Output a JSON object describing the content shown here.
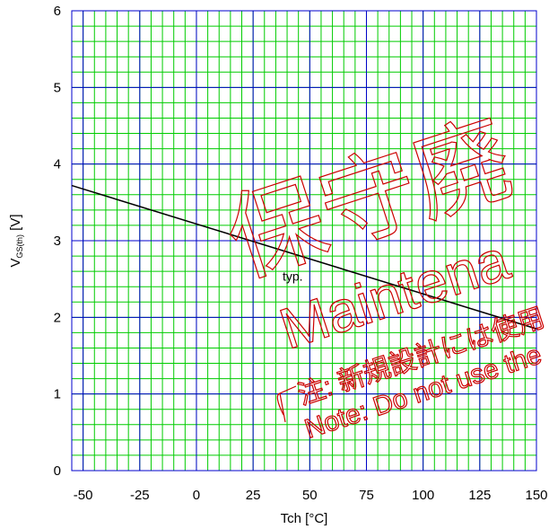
{
  "chart_data": {
    "type": "line",
    "title": "",
    "xlabel": "Tch [°C]",
    "ylabel": {
      "main": "V",
      "sub": "GS(th)",
      "unit": " [V]"
    },
    "xlim": [
      -55,
      150
    ],
    "ylim": [
      0,
      6
    ],
    "x_ticks": [
      -50,
      -25,
      0,
      25,
      50,
      75,
      100,
      125,
      150
    ],
    "y_ticks": [
      0,
      1,
      2,
      3,
      4,
      5,
      6
    ],
    "grid": true,
    "minor_grid": {
      "x_step": 5,
      "y_step": 0.2
    },
    "colors": {
      "major_grid": "#0000cc",
      "minor_grid": "#00cc00",
      "line": "#000000",
      "watermark": "#cc0000"
    },
    "series": [
      {
        "name": "typ.",
        "x": [
          -55,
          150
        ],
        "y": [
          3.72,
          1.85
        ]
      }
    ],
    "annotations": [
      {
        "text": "typ.",
        "x": 38,
        "y": 2.48
      }
    ]
  },
  "watermark": {
    "line1": "保守廃",
    "line2": "Maintena",
    "line3": "注: 新規設計には使用",
    "line4": "Note: Do not use the"
  }
}
